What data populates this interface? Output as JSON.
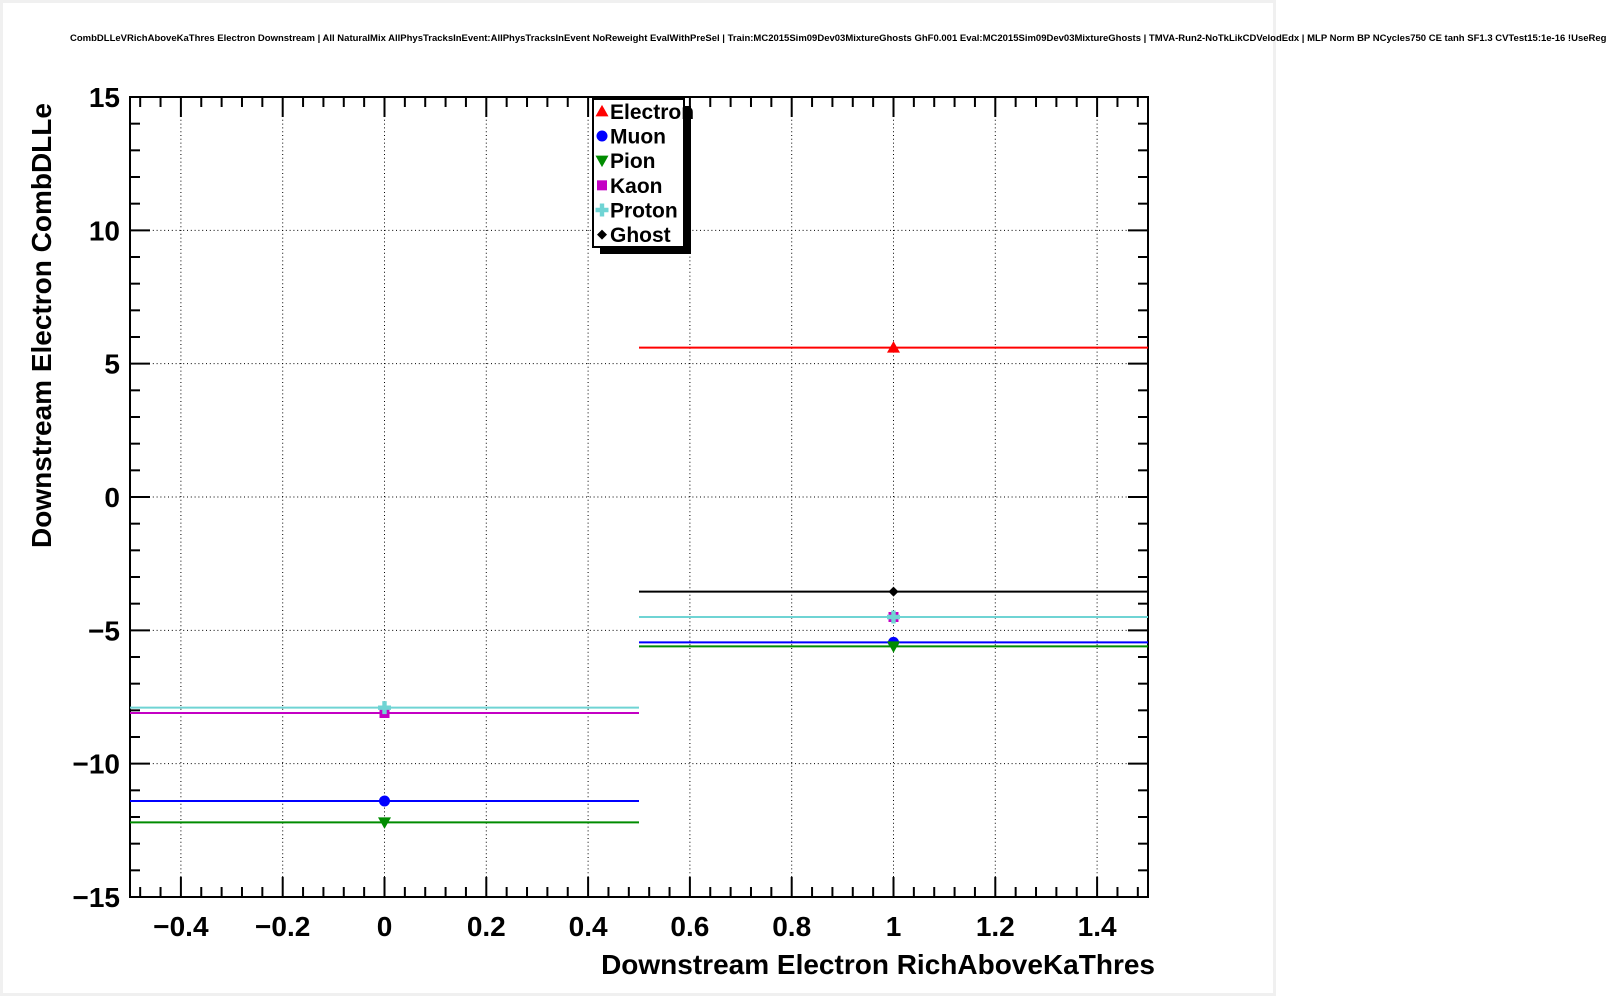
{
  "chart_data": {
    "type": "scatter",
    "title": "CombDLLeVRichAboveKaThres Electron Downstream | All NaturalMix AllPhysTracksInEvent:AllPhysTracksInEvent NoReweight EvalWithPreSel | Train:MC2015Sim09Dev03MixtureGhosts GhF0.001 Eval:MC2015Sim09Dev03MixtureGhosts | TMVA-Run2-NoTkLikCDVelodEdx | MLP Norm BP NCycles750 CE tanh SF1.3 CVTest15:1e-16 !UseReg",
    "xlabel": "Downstream Electron RichAboveKaThres",
    "ylabel": "Downstream Electron CombDLLe",
    "xlim": [
      -0.5,
      1.5
    ],
    "ylim": [
      -15,
      15
    ],
    "x_major_ticks": [
      -0.4,
      -0.2,
      0,
      0.2,
      0.4,
      0.6,
      0.8,
      1,
      1.2,
      1.4
    ],
    "x_tick_labels": [
      "−0.4",
      "−0.2",
      "0",
      "0.2",
      "0.4",
      "0.6",
      "0.8",
      "1",
      "1.2",
      "1.4"
    ],
    "y_major_ticks": [
      -15,
      -10,
      -5,
      0,
      5,
      10,
      15
    ],
    "y_tick_labels": [
      "−15",
      "−10",
      "−5",
      "0",
      "5",
      "10",
      "15"
    ],
    "x_minor_step": 0.04,
    "y_minor_step": 1,
    "grid": true,
    "legend_position": "top-center",
    "legend_order": [
      "Electron",
      "Muon",
      "Pion",
      "Kaon",
      "Proton",
      "Ghost"
    ],
    "series": [
      {
        "name": "Electron",
        "color": "#ff0000",
        "marker": "triangle-up",
        "points": [
          {
            "x": 1,
            "y": 5.6,
            "xlow": 0.5,
            "xhigh": 1.5
          }
        ]
      },
      {
        "name": "Muon",
        "color": "#0000ff",
        "marker": "circle",
        "points": [
          {
            "x": 0,
            "y": -11.4,
            "xlow": -0.5,
            "xhigh": 0.5
          },
          {
            "x": 1,
            "y": -5.45,
            "xlow": 0.5,
            "xhigh": 1.5
          }
        ]
      },
      {
        "name": "Pion",
        "color": "#008c00",
        "marker": "triangle-down",
        "points": [
          {
            "x": 0,
            "y": -12.2,
            "xlow": -0.5,
            "xhigh": 0.5
          },
          {
            "x": 1,
            "y": -5.6,
            "xlow": 0.5,
            "xhigh": 1.5
          }
        ]
      },
      {
        "name": "Kaon",
        "color": "#c400c4",
        "marker": "square",
        "points": [
          {
            "x": 0,
            "y": -8.1,
            "xlow": -0.5,
            "xhigh": 0.5
          },
          {
            "x": 1,
            "y": -4.5,
            "xlow": 0.5,
            "xhigh": 1.5
          }
        ]
      },
      {
        "name": "Proton",
        "color": "#6fd4d4",
        "marker": "cross",
        "points": [
          {
            "x": 0,
            "y": -7.9,
            "xlow": -0.5,
            "xhigh": 0.5
          },
          {
            "x": 1,
            "y": -4.5,
            "xlow": 0.5,
            "xhigh": 1.5
          }
        ]
      },
      {
        "name": "Ghost",
        "color": "#000000",
        "marker": "diamond",
        "points": [
          {
            "x": 1,
            "y": -3.55,
            "xlow": 0.5,
            "xhigh": 1.5
          }
        ]
      }
    ]
  }
}
